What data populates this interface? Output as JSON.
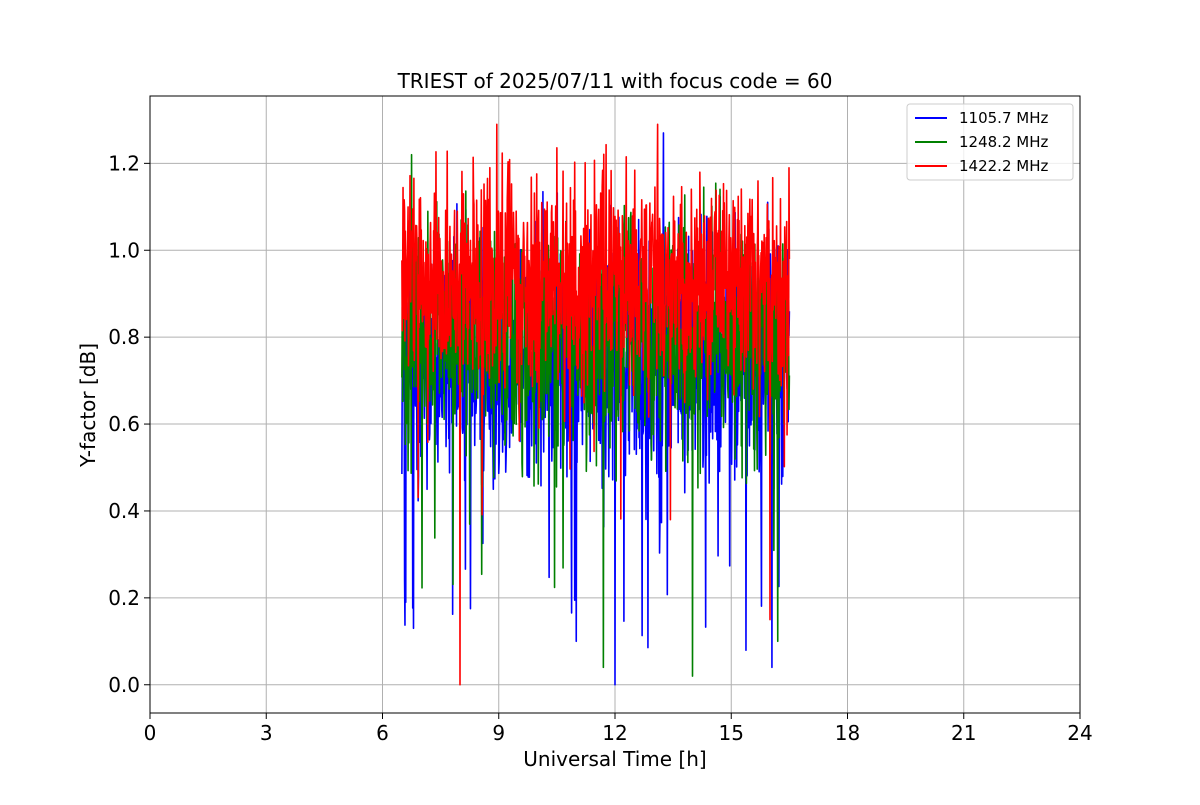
{
  "chart_data": {
    "type": "line",
    "title": "TRIEST of 2025/07/11 with focus code = 60",
    "xlabel": "Universal Time [h]",
    "ylabel": "Y-factor [dB]",
    "xlim": [
      0,
      24
    ],
    "ylim": [
      -0.065,
      1.355
    ],
    "xticks": [
      0,
      3,
      6,
      9,
      12,
      15,
      18,
      21,
      24
    ],
    "yticks": [
      0.0,
      0.2,
      0.4,
      0.6,
      0.8,
      1.0,
      1.2
    ],
    "ytick_labels": [
      "0.0",
      "0.2",
      "0.4",
      "0.6",
      "0.8",
      "1.0",
      "1.2"
    ],
    "grid": true,
    "legend_position": "top-right",
    "x_range_of_data": [
      6.5,
      16.5
    ],
    "sample_interval_h": 0.01,
    "series": [
      {
        "name": "1105.7 MHz",
        "color": "#0000ff",
        "mean": 0.75,
        "spread": 0.18,
        "min": 0.0,
        "max": 1.27,
        "features": [
          {
            "x": 6.6,
            "y": 0.19
          },
          {
            "x": 6.8,
            "y": 0.13
          },
          {
            "x": 11.0,
            "y": 0.1
          },
          {
            "x": 12.0,
            "y": 0.0
          },
          {
            "x": 13.25,
            "y": 1.27
          },
          {
            "x": 16.05,
            "y": 0.04
          }
        ]
      },
      {
        "name": "1248.2 MHz",
        "color": "#008000",
        "mean": 0.8,
        "spread": 0.16,
        "min": 0.02,
        "max": 1.22,
        "features": [
          {
            "x": 6.75,
            "y": 1.22
          },
          {
            "x": 11.7,
            "y": 0.04
          },
          {
            "x": 14.0,
            "y": 0.02
          },
          {
            "x": 16.2,
            "y": 0.1
          }
        ]
      },
      {
        "name": "1422.2 MHz",
        "color": "#ff0000",
        "mean": 0.93,
        "spread": 0.15,
        "min": 0.0,
        "max": 1.29,
        "features": [
          {
            "x": 8.0,
            "y": 0.0
          },
          {
            "x": 8.95,
            "y": 1.29
          },
          {
            "x": 13.1,
            "y": 1.29
          },
          {
            "x": 16.0,
            "y": 0.15
          }
        ]
      }
    ]
  }
}
